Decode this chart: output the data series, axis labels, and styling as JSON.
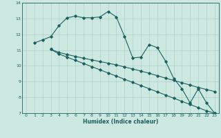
{
  "xlabel": "Humidex (Indice chaleur)",
  "bg_color": "#cce8e0",
  "grid_color": "#afd0c8",
  "line_color": "#1a6060",
  "xlim": [
    -0.5,
    23.5
  ],
  "ylim": [
    7,
    14
  ],
  "xticks": [
    0,
    1,
    2,
    3,
    4,
    5,
    6,
    7,
    8,
    9,
    10,
    11,
    12,
    13,
    14,
    15,
    16,
    17,
    18,
    19,
    20,
    21,
    22,
    23
  ],
  "yticks": [
    7,
    8,
    9,
    10,
    11,
    12,
    13,
    14
  ],
  "line1_x": [
    1,
    2,
    3,
    4,
    5,
    6,
    7,
    8,
    9,
    10,
    11,
    12,
    13,
    14,
    15,
    16,
    17,
    18,
    19,
    20,
    21,
    22,
    23
  ],
  "line1_y": [
    11.45,
    11.65,
    11.85,
    12.55,
    13.05,
    13.15,
    13.05,
    13.05,
    13.1,
    13.45,
    13.1,
    11.85,
    10.5,
    10.55,
    11.35,
    11.15,
    10.3,
    9.2,
    8.55,
    7.65,
    8.55,
    7.65,
    7.0
  ],
  "line2_x": [
    3,
    4,
    5,
    6,
    7,
    8,
    9,
    10,
    11,
    12,
    13,
    14,
    15,
    16,
    17,
    18,
    19,
    20,
    21,
    22,
    23
  ],
  "line2_y": [
    11.05,
    10.85,
    10.72,
    10.6,
    10.48,
    10.38,
    10.27,
    10.17,
    10.06,
    9.93,
    9.8,
    9.67,
    9.53,
    9.38,
    9.22,
    9.08,
    8.93,
    8.78,
    8.63,
    8.5,
    8.37
  ],
  "line3_x": [
    3,
    4,
    5,
    6,
    7,
    8,
    9,
    10,
    11,
    12,
    13,
    14,
    15,
    16,
    17,
    18,
    19,
    20,
    21,
    22,
    23
  ],
  "line3_y": [
    11.05,
    10.75,
    10.55,
    10.35,
    10.15,
    9.95,
    9.75,
    9.55,
    9.35,
    9.15,
    8.95,
    8.75,
    8.55,
    8.35,
    8.15,
    7.95,
    7.75,
    7.55,
    7.35,
    7.15,
    7.0
  ]
}
